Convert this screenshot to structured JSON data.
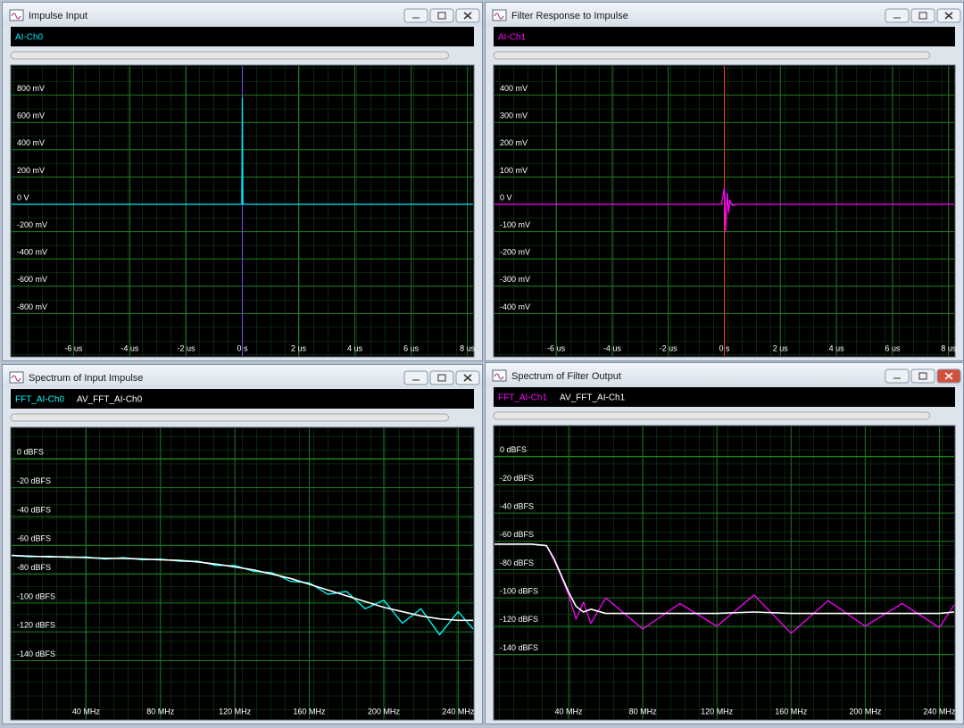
{
  "chart_data": [
    {
      "type": "line",
      "title": "Impulse Input",
      "x": [
        -8.2,
        -0.02,
        0,
        0.02,
        8.2
      ],
      "series": [
        {
          "name": "AI-Ch0",
          "color": "#00e5ff",
          "values": [
            0,
            0,
            780,
            0,
            0
          ]
        }
      ],
      "xlim": [
        -8.2,
        8.2
      ],
      "xticks": [
        {
          "value": -6,
          "label": "-6 us"
        },
        {
          "value": -4,
          "label": "-4 us"
        },
        {
          "value": -2,
          "label": "-2 us"
        },
        {
          "value": 0,
          "label": "0 s"
        },
        {
          "value": 2,
          "label": "2 us"
        },
        {
          "value": 4,
          "label": "4 us"
        },
        {
          "value": 6,
          "label": "6 us"
        },
        {
          "value": 8,
          "label": "8 us"
        }
      ],
      "ylim": [
        -1000,
        1000
      ],
      "yticks": [
        {
          "value": 800,
          "label": "800 mV"
        },
        {
          "value": 600,
          "label": "600 mV"
        },
        {
          "value": 400,
          "label": "400 mV"
        },
        {
          "value": 200,
          "label": "200 mV"
        },
        {
          "value": 0,
          "label": "0 V"
        },
        {
          "value": -200,
          "label": "-200 mV"
        },
        {
          "value": -400,
          "label": "-400 mV"
        },
        {
          "value": -600,
          "label": "-600 mV"
        },
        {
          "value": -800,
          "label": "-800 mV"
        }
      ],
      "grid": true
    },
    {
      "type": "line",
      "title": "Filter Response to Impulse",
      "x": [
        -8.2,
        -0.1,
        0,
        0.05,
        0.1,
        0.15,
        0.2,
        0.3,
        0.4,
        8.2
      ],
      "series": [
        {
          "name": "AI-Ch1",
          "color": "#ff00ff",
          "values": [
            0,
            0,
            60,
            -100,
            40,
            -30,
            15,
            -5,
            0,
            0
          ]
        }
      ],
      "xlim": [
        -8.2,
        8.2
      ],
      "xticks": [
        {
          "value": -6,
          "label": "-6 us"
        },
        {
          "value": -4,
          "label": "-4 us"
        },
        {
          "value": -2,
          "label": "-2 us"
        },
        {
          "value": 0,
          "label": "0 s"
        },
        {
          "value": 2,
          "label": "2 us"
        },
        {
          "value": 4,
          "label": "4 us"
        },
        {
          "value": 6,
          "label": "6 us"
        },
        {
          "value": 8,
          "label": "8 us"
        }
      ],
      "ylim": [
        -500,
        500
      ],
      "yticks": [
        {
          "value": 400,
          "label": "400 mV"
        },
        {
          "value": 300,
          "label": "300 mV"
        },
        {
          "value": 200,
          "label": "200 mV"
        },
        {
          "value": 100,
          "label": "100 mV"
        },
        {
          "value": 0,
          "label": "0 V"
        },
        {
          "value": -100,
          "label": "-100 mV"
        },
        {
          "value": -200,
          "label": "-200 mV"
        },
        {
          "value": -300,
          "label": "-300 mV"
        },
        {
          "value": -400,
          "label": "-400 mV"
        }
      ],
      "grid": true
    },
    {
      "type": "line",
      "title": "Spectrum of Input Impulse",
      "x": [
        0,
        10,
        20,
        30,
        40,
        50,
        60,
        70,
        80,
        90,
        100,
        110,
        120,
        130,
        140,
        150,
        160,
        170,
        180,
        190,
        200,
        210,
        220,
        230,
        240,
        248
      ],
      "series": [
        {
          "name": "FFT_AI-Ch0",
          "color": "#00ffff",
          "values": [
            -67,
            -68,
            -67.5,
            -68.5,
            -68,
            -69.5,
            -68.5,
            -70,
            -69.5,
            -71,
            -71,
            -74,
            -74,
            -78,
            -79,
            -85,
            -86,
            -94,
            -92,
            -104,
            -98,
            -114,
            -104,
            -122,
            -106,
            -118
          ]
        },
        {
          "name": "AV_FFT_AI-Ch0",
          "color": "#ffffff",
          "values": [
            -67,
            -67.5,
            -68,
            -68,
            -68.5,
            -69,
            -69,
            -69.5,
            -70,
            -70.5,
            -71.5,
            -73,
            -75,
            -77,
            -80,
            -83,
            -87,
            -91,
            -95,
            -99,
            -103,
            -106,
            -109,
            -111,
            -112,
            -112
          ]
        }
      ],
      "xlim": [
        0,
        248
      ],
      "xticks": [
        {
          "value": 40,
          "label": "40 MHz"
        },
        {
          "value": 80,
          "label": "80 MHz"
        },
        {
          "value": 120,
          "label": "120 MHz"
        },
        {
          "value": 160,
          "label": "160 MHz"
        },
        {
          "value": 200,
          "label": "200 MHz"
        },
        {
          "value": 240,
          "label": "240 MHz"
        }
      ],
      "ylim": [
        -170,
        20
      ],
      "yticks": [
        {
          "value": 0,
          "label": "0 dBFS"
        },
        {
          "value": -20,
          "label": "-20 dBFS"
        },
        {
          "value": -40,
          "label": "-40 dBFS"
        },
        {
          "value": -60,
          "label": "-60 dBFS"
        },
        {
          "value": -80,
          "label": "-80 dBFS"
        },
        {
          "value": -100,
          "label": "-100 dBFS"
        },
        {
          "value": -120,
          "label": "-120 dBFS"
        },
        {
          "value": -140,
          "label": "-140 dBFS"
        }
      ],
      "grid": true
    },
    {
      "type": "line",
      "title": "Spectrum of Filter Output",
      "x": [
        0,
        10,
        20,
        28,
        32,
        36,
        40,
        44,
        48,
        52,
        60,
        80,
        100,
        120,
        140,
        160,
        180,
        200,
        220,
        240,
        248
      ],
      "series": [
        {
          "name": "FFT_AI-Ch1",
          "color": "#ff00ff",
          "values": [
            -62,
            -62,
            -62,
            -63,
            -73,
            -85,
            -98,
            -115,
            -103,
            -118,
            -100,
            -122,
            -104,
            -120,
            -98,
            -125,
            -102,
            -120,
            -104,
            -121,
            -105
          ]
        },
        {
          "name": "AV_FFT_AI-Ch1",
          "color": "#ffffff",
          "values": [
            -62,
            -62,
            -62,
            -63,
            -72,
            -84,
            -96,
            -106,
            -110,
            -108,
            -111,
            -111,
            -111,
            -111,
            -110,
            -111,
            -111,
            -111,
            -111,
            -111,
            -110
          ]
        }
      ],
      "xlim": [
        0,
        248
      ],
      "xticks": [
        {
          "value": 40,
          "label": "40 MHz"
        },
        {
          "value": 80,
          "label": "80 MHz"
        },
        {
          "value": 120,
          "label": "120 MHz"
        },
        {
          "value": 160,
          "label": "160 MHz"
        },
        {
          "value": 200,
          "label": "200 MHz"
        },
        {
          "value": 240,
          "label": "240 MHz"
        }
      ],
      "ylim": [
        -175,
        20
      ],
      "yticks": [
        {
          "value": 0,
          "label": "0 dBFS"
        },
        {
          "value": -20,
          "label": "-20 dBFS"
        },
        {
          "value": -40,
          "label": "-40 dBFS"
        },
        {
          "value": -60,
          "label": "-60 dBFS"
        },
        {
          "value": -80,
          "label": "-80 dBFS"
        },
        {
          "value": -100,
          "label": "-100 dBFS"
        },
        {
          "value": -120,
          "label": "-120 dBFS"
        },
        {
          "value": -140,
          "label": "-140 dBFS"
        }
      ],
      "grid": true
    }
  ]
}
